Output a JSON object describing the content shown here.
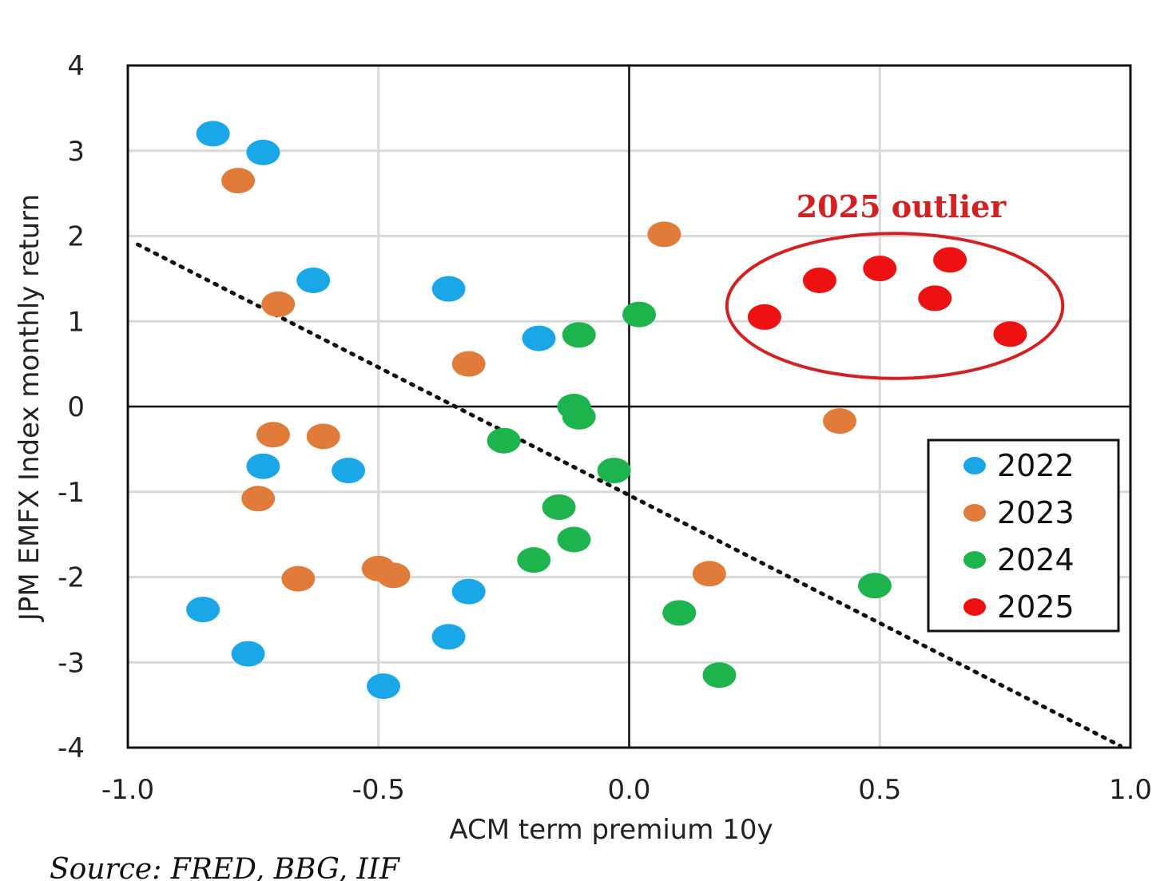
{
  "chart_data": {
    "type": "scatter",
    "xlabel": "ACM term premium 10y",
    "ylabel": "JPM EMFX Index monthly return",
    "xlim": [
      -1.0,
      1.0
    ],
    "ylim": [
      -4,
      4
    ],
    "x_ticks": [
      "-1.0",
      "-0.5",
      "0.0",
      "0.5",
      "1.0"
    ],
    "x_tick_values": [
      -1.0,
      -0.5,
      0.0,
      0.5,
      1.0
    ],
    "y_ticks": [
      "4",
      "3",
      "2",
      "1",
      "0",
      "-1",
      "-2",
      "-3",
      "-4"
    ],
    "y_tick_values": [
      4,
      3,
      2,
      1,
      0,
      -1,
      -2,
      -3,
      -4
    ],
    "grid": true,
    "legend_position": "right",
    "series": [
      {
        "name": "2022",
        "color": "#1aa7e8",
        "points": [
          [
            -0.83,
            3.2
          ],
          [
            -0.73,
            2.98
          ],
          [
            -0.63,
            1.48
          ],
          [
            -0.36,
            1.38
          ],
          [
            -0.18,
            0.8
          ],
          [
            -0.73,
            -0.7
          ],
          [
            -0.56,
            -0.75
          ],
          [
            -0.32,
            -2.17
          ],
          [
            -0.85,
            -2.38
          ],
          [
            -0.36,
            -2.7
          ],
          [
            -0.76,
            -2.9
          ],
          [
            -0.49,
            -3.28
          ]
        ]
      },
      {
        "name": "2023",
        "color": "#e07b39",
        "points": [
          [
            -0.78,
            2.65
          ],
          [
            -0.7,
            1.2
          ],
          [
            -0.32,
            0.5
          ],
          [
            0.07,
            2.02
          ],
          [
            -0.71,
            -0.33
          ],
          [
            -0.61,
            -0.35
          ],
          [
            -0.74,
            -1.08
          ],
          [
            -0.66,
            -2.02
          ],
          [
            -0.5,
            -1.9
          ],
          [
            -0.47,
            -1.98
          ],
          [
            0.16,
            -1.96
          ],
          [
            0.42,
            -0.17
          ]
        ]
      },
      {
        "name": "2024",
        "color": "#1db34d",
        "points": [
          [
            0.02,
            1.08
          ],
          [
            -0.1,
            0.84
          ],
          [
            -0.11,
            0.0
          ],
          [
            -0.1,
            -0.12
          ],
          [
            -0.25,
            -0.4
          ],
          [
            -0.03,
            -0.75
          ],
          [
            -0.14,
            -1.18
          ],
          [
            -0.11,
            -1.56
          ],
          [
            -0.19,
            -1.8
          ],
          [
            0.1,
            -2.42
          ],
          [
            0.49,
            -2.1
          ],
          [
            0.18,
            -3.15
          ]
        ]
      },
      {
        "name": "2025",
        "color": "#ee1111",
        "points": [
          [
            0.27,
            1.05
          ],
          [
            0.38,
            1.48
          ],
          [
            0.5,
            1.62
          ],
          [
            0.64,
            1.72
          ],
          [
            0.61,
            1.27
          ],
          [
            0.76,
            0.85
          ]
        ]
      }
    ],
    "trendline": {
      "style": "dotted",
      "color": "#111111",
      "from": [
        -0.98,
        1.9
      ],
      "to": [
        0.98,
        -3.98
      ]
    },
    "annotation": {
      "text": "2025 outlier",
      "color": "#d42020",
      "center": [
        0.53,
        1.18
      ],
      "rx": 0.335,
      "ry": 0.85
    },
    "source": "Source: FRED, BBG, IIF"
  }
}
